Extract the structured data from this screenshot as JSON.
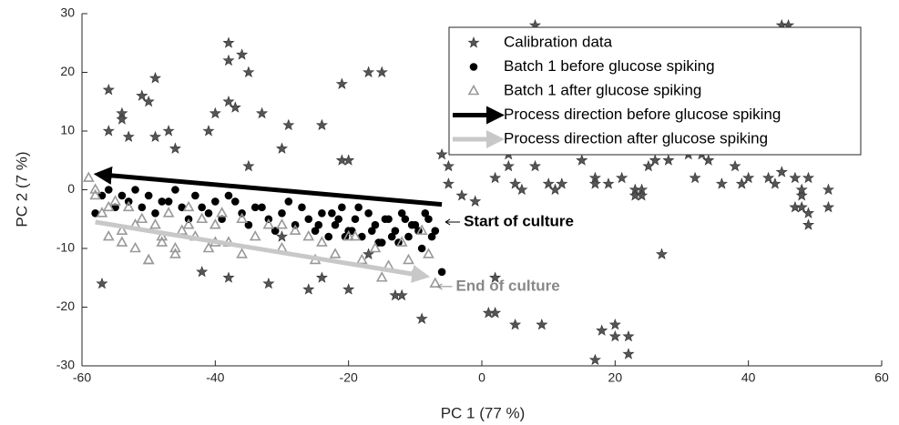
{
  "chart_data": {
    "type": "scatter",
    "xlabel": "PC 1 (77 %)",
    "ylabel": "PC 2 (7 %)",
    "xlim": [
      -60,
      60
    ],
    "ylim": [
      -30,
      30
    ],
    "xticks": [
      -60,
      -40,
      -20,
      0,
      20,
      40,
      60
    ],
    "yticks": [
      -30,
      -20,
      -10,
      0,
      10,
      20,
      30
    ],
    "legend": "upper right",
    "annotations": [
      {
        "text": "Start of culture",
        "color": "#000000"
      },
      {
        "text": "End of culture",
        "color": "#888888"
      }
    ],
    "series": [
      {
        "name": "Calibration data",
        "marker": "star",
        "color": "#555555",
        "x": [
          -38,
          -38,
          -36,
          -35,
          -56,
          -54,
          -54,
          -51,
          -49,
          -50,
          -47,
          -56,
          -53,
          -49,
          -46,
          -40,
          -38,
          -37,
          -33,
          -41,
          -35,
          -29,
          -30,
          -24,
          -21,
          -21,
          -20,
          -17,
          -15,
          -57,
          -42,
          -38,
          -32,
          -26,
          -24,
          -20,
          -17,
          -13,
          -12,
          -9,
          -5,
          -6,
          -5,
          -3,
          -1,
          2,
          4,
          5,
          6,
          8,
          8,
          10,
          11,
          12,
          2,
          2,
          1,
          5,
          9,
          18,
          20,
          20,
          17,
          22,
          22,
          17,
          17,
          19,
          21,
          23,
          23,
          24,
          24,
          25,
          26,
          27,
          28,
          30,
          31,
          32,
          33,
          34,
          36,
          38,
          39,
          40,
          41,
          43,
          44,
          45,
          45,
          46,
          47,
          47,
          48,
          48,
          48,
          49,
          49,
          49,
          52,
          52,
          -4,
          4,
          15,
          36,
          -30
        ],
        "y": [
          25,
          22,
          23,
          20,
          17,
          13,
          12,
          16,
          19,
          15,
          10,
          10,
          9,
          9,
          7,
          13,
          15,
          14,
          13,
          10,
          4,
          11,
          7,
          11,
          18,
          5,
          5,
          20,
          20,
          -16,
          -14,
          -15,
          -16,
          -17,
          -15,
          -17,
          -11,
          -18,
          -18,
          -22,
          1,
          6,
          4,
          -1,
          -2,
          2,
          4,
          1,
          0,
          4,
          28,
          1,
          0,
          1,
          -15,
          -21,
          -21,
          -23,
          -23,
          -24,
          -23,
          -25,
          -29,
          -25,
          -28,
          2,
          1,
          1,
          2,
          0,
          -1,
          0,
          -1,
          4,
          5,
          -11,
          5,
          7,
          6,
          2,
          6,
          5,
          1,
          4,
          1,
          2,
          7,
          2,
          1,
          3,
          28,
          28,
          2,
          -3,
          -1,
          -3,
          0,
          -4,
          -6,
          2,
          0,
          -3,
          15,
          6,
          5,
          11,
          -8
        ]
      },
      {
        "name": "Batch 1 before glucose spiking",
        "marker": "circle",
        "color": "#000000",
        "x": [
          -58,
          -57,
          -56,
          -55,
          -54,
          -53,
          -52,
          -51,
          -50,
          -49,
          -48,
          -47,
          -46,
          -45,
          -44,
          -43,
          -42,
          -41,
          -40,
          -39,
          -38,
          -37,
          -36,
          -35,
          -34,
          -33,
          -32,
          -31,
          -30,
          -29,
          -28,
          -27,
          -26,
          -25,
          -24,
          -23,
          -22,
          -21,
          -20,
          -19,
          -18,
          -17,
          -16,
          -15,
          -14,
          -13,
          -12,
          -11,
          -10,
          -9,
          -8,
          -7,
          -6,
          -24.5,
          -22.5,
          -20.5,
          -18.5,
          -16.5,
          -14.5,
          -12.5,
          -10.5,
          -8.5,
          -7.5,
          -19.5,
          -15.5,
          -11.5,
          -9.5,
          -13.5,
          -21.5
        ],
        "y": [
          -4,
          -1,
          0,
          -3,
          -1,
          -2,
          0,
          -3,
          -1,
          -4,
          -2,
          -2,
          0,
          -3,
          -5,
          -1,
          -3,
          -4,
          -2,
          -5,
          -1,
          -2,
          -4,
          -6,
          -3,
          -3,
          -5,
          -7,
          -4,
          -2,
          -6,
          -3,
          -5,
          -7,
          -4,
          -8,
          -6,
          -3,
          -7,
          -5,
          -8,
          -4,
          -6,
          -9,
          -5,
          -7,
          -4,
          -8,
          -6,
          -10,
          -5,
          -7,
          -14,
          -6,
          -4,
          -8,
          -3,
          -7,
          -5,
          -9,
          -6,
          -4,
          -8,
          -7,
          -9,
          -5,
          -7,
          -8,
          -5
        ]
      },
      {
        "name": "Batch 1 after glucose spiking",
        "marker": "triangle",
        "color": "#999999",
        "x": [
          -59,
          -58,
          -57,
          -56,
          -55,
          -54,
          -53,
          -52,
          -51,
          -50,
          -49,
          -48,
          -47,
          -46,
          -45,
          -44,
          -43,
          -42,
          -41,
          -40,
          -39,
          -38,
          -36,
          -34,
          -32,
          -30,
          -28,
          -26,
          -24,
          -22,
          -20,
          -18,
          -16,
          -14,
          -12,
          -10,
          -8,
          -7,
          -58,
          -56,
          -54,
          -52,
          -50,
          -48,
          -46,
          -44,
          -40,
          -36,
          -30,
          -25,
          -19,
          -15,
          -11,
          -9
        ],
        "y": [
          2,
          -1,
          -4,
          -8,
          -2,
          -7,
          -3,
          -10,
          -5,
          -12,
          -6,
          -9,
          -4,
          -11,
          -7,
          -3,
          -8,
          -5,
          -10,
          -6,
          -4,
          -9,
          -5,
          -8,
          -6,
          -10,
          -7,
          -8,
          -9,
          -11,
          -8,
          -12,
          -10,
          -13,
          -9,
          -14,
          -11,
          -16,
          0,
          -3,
          -9,
          -6,
          -12,
          -8,
          -10,
          -6,
          -9,
          -11,
          -6,
          -12,
          -8,
          -15,
          -12,
          -7
        ]
      },
      {
        "name": "Process direction before glucose spiking",
        "marker": "arrow",
        "color": "#000000",
        "x": [
          -6,
          -58
        ],
        "y": [
          -2.5,
          2.5
        ]
      },
      {
        "name": "Process direction after glucose spiking",
        "marker": "arrow",
        "color": "#c8c8c8",
        "x": [
          -58,
          -8
        ],
        "y": [
          -5.5,
          -14.5
        ]
      }
    ]
  }
}
